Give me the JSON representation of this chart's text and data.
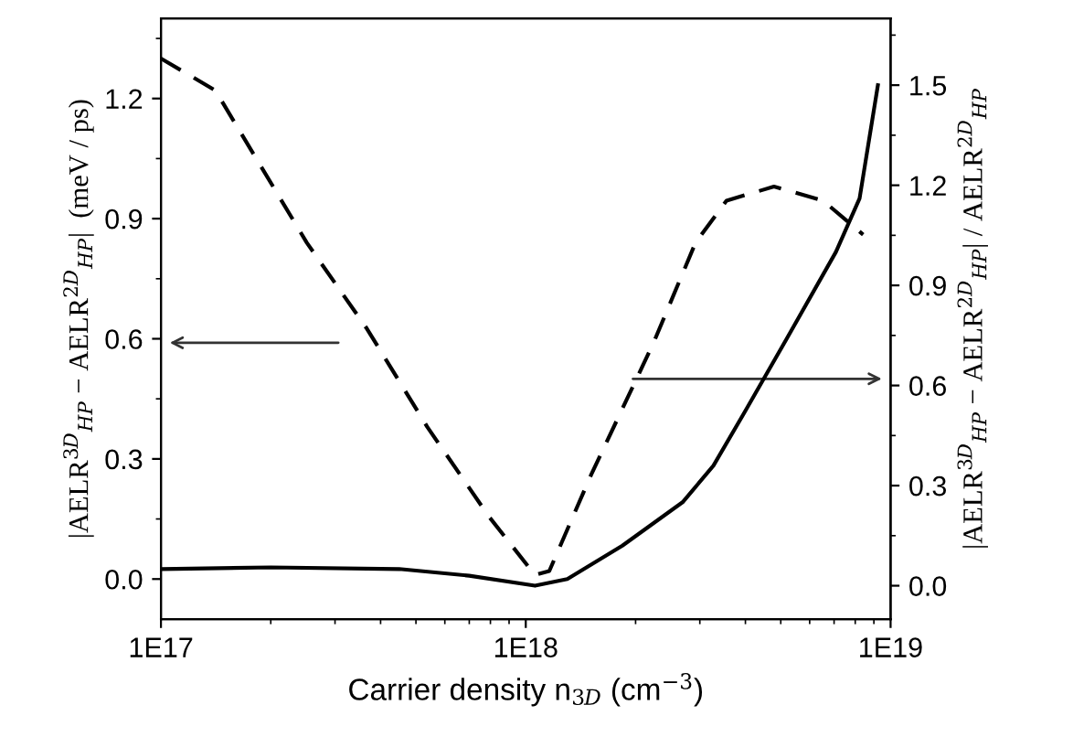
{
  "chart_data": {
    "type": "line",
    "xlabel": "Carrier density n$_{3D}$ (cm$^{−3}$)",
    "ylabel": "|AELR$^{3D}$$_{HP}$ − AELR$^{2D}$$_{HP}$|  (meV / ps)",
    "y2label": "|AELR$^{3D}$$_{HP}$ − AELR$^{2D}$$_{HP}$| / AELR$^{2D}$$_{HP}$",
    "log": "x",
    "xlim": [
      1e+17,
      1e+19
    ],
    "xticks": [
      {
        "value": 1e+17,
        "label": "1E17"
      },
      {
        "value": 1e+18,
        "label": "1E18"
      },
      {
        "value": 1e+19,
        "label": "1E19"
      }
    ],
    "ylim": [
      -0.1,
      1.4
    ],
    "yticks": [
      {
        "value": 0,
        "label": "0.0"
      },
      0.3,
      0.6,
      0.9,
      1.2
    ],
    "y2lim": [
      -0.1,
      1.7
    ],
    "y2ticks": [
      {
        "value": 0,
        "label": "0.0"
      },
      0.3,
      0.6,
      0.9,
      1.2,
      1.5
    ],
    "grid": false,
    "legend": false,
    "marker": "none",
    "series": [
      {
        "color": "#000000",
        "line_style": "dashed",
        "x": [
          1e+17,
          1.41e+17,
          2.51e+17,
          3.67e+17,
          5.37e+17,
          7.94e+17,
          1.06e+18,
          1.16e+18,
          1.51e+18,
          2.24e+18,
          2.92e+18,
          3.55e+18,
          4.79e+18,
          6.53e+18,
          8.41e+18
        ],
        "values": [
          1.3,
          1.22,
          0.84,
          0.625,
          0.38,
          0.155,
          0.01,
          0.02,
          0.26,
          0.59,
          0.84,
          0.945,
          0.98,
          0.945,
          0.86
        ]
      },
      {
        "color": "#000000",
        "line_style": "solid",
        "axis": "y2",
        "x": [
          1e+17,
          2e+17,
          4.5e+17,
          7e+17,
          1.06e+18,
          1.3e+18,
          1.84e+18,
          2.69e+18,
          3.27e+18,
          3.98e+18,
          5.19e+18,
          7.08e+18,
          8.22e+18,
          9.23e+18
        ],
        "values": [
          0.05,
          0.055,
          0.05,
          0.03,
          0.0,
          0.02,
          0.12,
          0.25,
          0.36,
          0.52,
          0.74,
          1.0,
          1.16,
          1.5
        ]
      }
    ]
  }
}
